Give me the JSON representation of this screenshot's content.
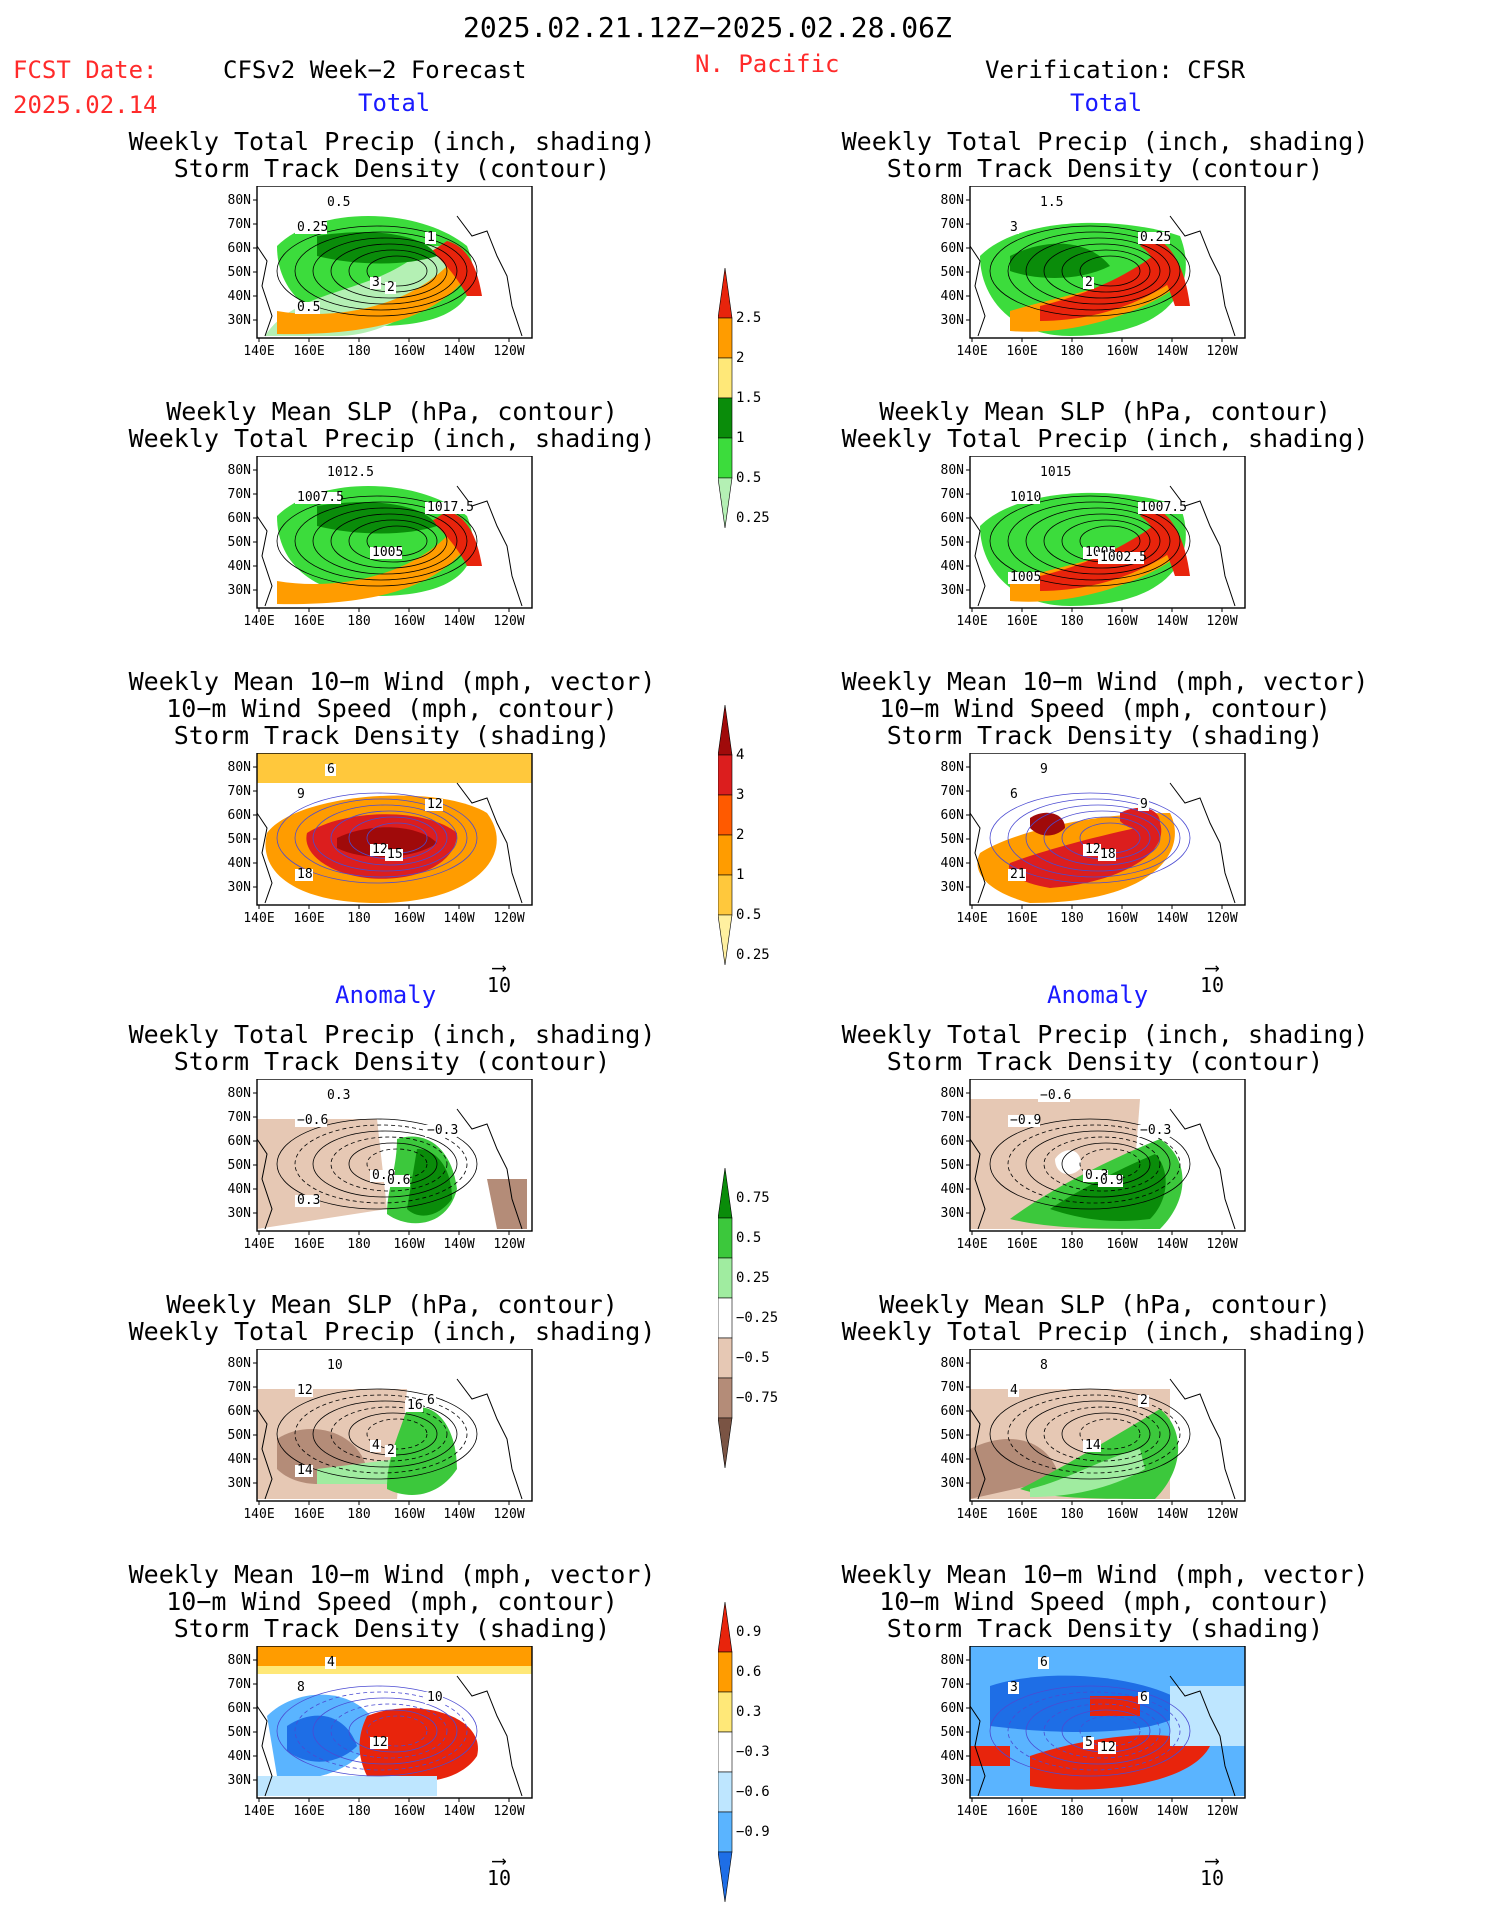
{
  "header": {
    "period": "2025.02.21.12Z−2025.02.28.06Z",
    "fcst_label": "FCST Date:",
    "fcst_date": "2025.02.14",
    "model": "CFSv2 Week−2 Forecast",
    "region": "N. Pacific",
    "verification": "Verification: CFSR"
  },
  "sections": {
    "total": "Total",
    "anomaly": "Anomaly"
  },
  "titles": {
    "precip_storm": [
      "Weekly Total Precip (inch, shading)",
      "Storm Track Density (contour)"
    ],
    "slp_precip": [
      "Weekly Mean SLP (hPa, contour)",
      "Weekly Total Precip (inch, shading)"
    ],
    "wind_storm": [
      "Weekly Mean 10−m Wind (mph, vector)",
      "10−m Wind Speed (mph, contour)",
      "Storm Track Density (shading)"
    ]
  },
  "axes": {
    "lat_labels": [
      "80N",
      "70N",
      "60N",
      "50N",
      "40N",
      "30N"
    ],
    "lon_labels": [
      "140E",
      "160E",
      "180",
      "160W",
      "140W",
      "120W"
    ]
  },
  "vector_ref": "10",
  "colorbars": {
    "precip_total": {
      "labels": [
        "2.5",
        "2",
        "1.5",
        "1",
        "0.5",
        "0.25"
      ],
      "colors": [
        "#e8240c",
        "#ff9c00",
        "#ffe878",
        "#0a8c0a",
        "#3cdc3c",
        "#b4f0b4"
      ]
    },
    "storm_total": {
      "labels": [
        "4",
        "3",
        "2",
        "1",
        "0.5",
        "0.25"
      ],
      "colors": [
        "#a00a0a",
        "#dc1e1e",
        "#ff5a00",
        "#ff9c00",
        "#ffc83c",
        "#fff0a0"
      ]
    },
    "precip_anom": {
      "labels": [
        "0.75",
        "0.5",
        "0.25",
        "−0.25",
        "−0.5",
        "−0.75"
      ],
      "colors": [
        "#0a8c0a",
        "#3cc83c",
        "#a0eca0",
        "#ffffff",
        "#e6c8b4",
        "#b48c78",
        "#7a5444"
      ]
    },
    "storm_anom": {
      "labels": [
        "0.9",
        "0.6",
        "0.3",
        "−0.3",
        "−0.6",
        "−0.9"
      ],
      "colors": [
        "#e8240c",
        "#ff9c00",
        "#ffe878",
        "#ffffff",
        "#bee6ff",
        "#5ab4ff",
        "#1e6ee6"
      ]
    }
  },
  "panels": {
    "f_total_precip": [
      "0.5",
      "0.25",
      "1",
      "3",
      "2",
      "0.5"
    ],
    "v_total_precip": [
      "1.5",
      "3",
      "0.25",
      "2"
    ],
    "f_total_slp": [
      "1012.5",
      "1007.5",
      "1017.5",
      "1005"
    ],
    "v_total_slp": [
      "1015",
      "1010",
      "1007.5",
      "1005",
      "1002.5",
      "1005"
    ],
    "f_total_wind": [
      "6",
      "9",
      "12",
      "12",
      "15",
      "18"
    ],
    "v_total_wind": [
      "9",
      "6",
      "9",
      "12",
      "18",
      "21"
    ],
    "f_anom_precip": [
      "0.3",
      "−0.6",
      "−0.3",
      "0.9",
      "0.6",
      "0.3"
    ],
    "v_anom_precip": [
      "−0.6",
      "−0.9",
      "−0.3",
      "0.3",
      "0.9"
    ],
    "f_anom_slp": [
      "10",
      "12",
      "6",
      "4",
      "2",
      "14",
      "16"
    ],
    "v_anom_slp": [
      "8",
      "4",
      "2",
      "14"
    ],
    "f_anom_wind": [
      "4",
      "8",
      "10",
      "12"
    ],
    "v_anom_wind": [
      "6",
      "3",
      "6",
      "5",
      "12"
    ]
  }
}
